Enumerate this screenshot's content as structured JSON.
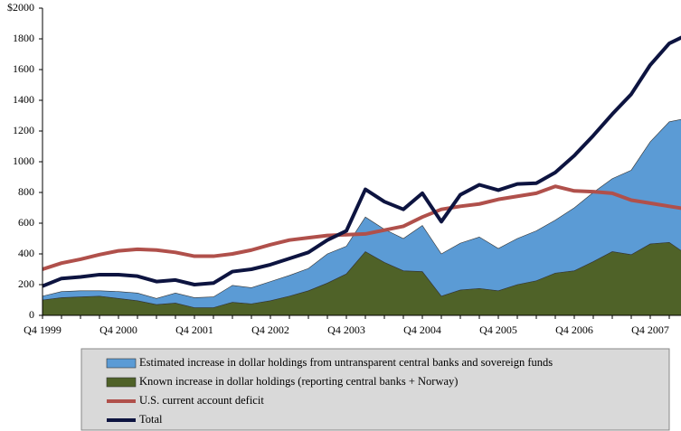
{
  "chart_data": {
    "type": "area",
    "categories": [
      "Q4 1999",
      null,
      null,
      null,
      "Q4 2000",
      null,
      null,
      null,
      "Q4 2001",
      null,
      null,
      null,
      "Q4 2002",
      null,
      null,
      null,
      "Q4 2003",
      null,
      null,
      null,
      "Q4 2004",
      null,
      null,
      null,
      "Q4 2005",
      null,
      null,
      null,
      "Q4 2006",
      null,
      null,
      null,
      "Q4 2007",
      null,
      null
    ],
    "ylim": [
      0,
      2000
    ],
    "yticks": [
      0,
      200,
      400,
      600,
      800,
      1000,
      1200,
      1400,
      1600,
      1800,
      {
        "value": 2000,
        "label": "$2000"
      }
    ],
    "stacked": true,
    "series": [
      {
        "name": "Estimated increase in dollar holdings from untransparent central banks and sovereign funds",
        "kind": "area",
        "color": "#5b9bd5",
        "values": [
          25,
          40,
          40,
          35,
          45,
          50,
          40,
          65,
          65,
          70,
          110,
          105,
          125,
          135,
          145,
          190,
          180,
          225,
          215,
          210,
          300,
          275,
          305,
          335,
          275,
          300,
          325,
          345,
          410,
          450,
          475,
          550,
          665,
          785,
          895
        ]
      },
      {
        "name": "Known increase in dollar holdings (reporting central banks + Norway)",
        "kind": "area",
        "color": "#4f6228",
        "values": [
          100,
          115,
          120,
          125,
          110,
          95,
          70,
          80,
          50,
          50,
          85,
          75,
          95,
          125,
          160,
          210,
          270,
          415,
          345,
          290,
          285,
          125,
          165,
          175,
          160,
          200,
          225,
          275,
          290,
          350,
          415,
          395,
          465,
          475,
          390
        ]
      },
      {
        "name": "U.S. current account deficit",
        "kind": "line",
        "color": "#b0504b",
        "values": [
          300,
          340,
          365,
          395,
          420,
          430,
          425,
          410,
          385,
          385,
          400,
          425,
          460,
          490,
          505,
          520,
          525,
          530,
          555,
          580,
          640,
          690,
          710,
          725,
          755,
          775,
          795,
          840,
          810,
          805,
          795,
          750,
          730,
          710,
          690
        ]
      },
      {
        "name": "Total",
        "kind": "line",
        "color": "#0d1440",
        "values": [
          190,
          240,
          250,
          265,
          265,
          255,
          220,
          230,
          200,
          210,
          285,
          300,
          330,
          370,
          410,
          490,
          550,
          820,
          740,
          690,
          795,
          610,
          785,
          850,
          815,
          855,
          860,
          930,
          1040,
          1170,
          1310,
          1440,
          1630,
          1770,
          1830
        ]
      }
    ]
  }
}
